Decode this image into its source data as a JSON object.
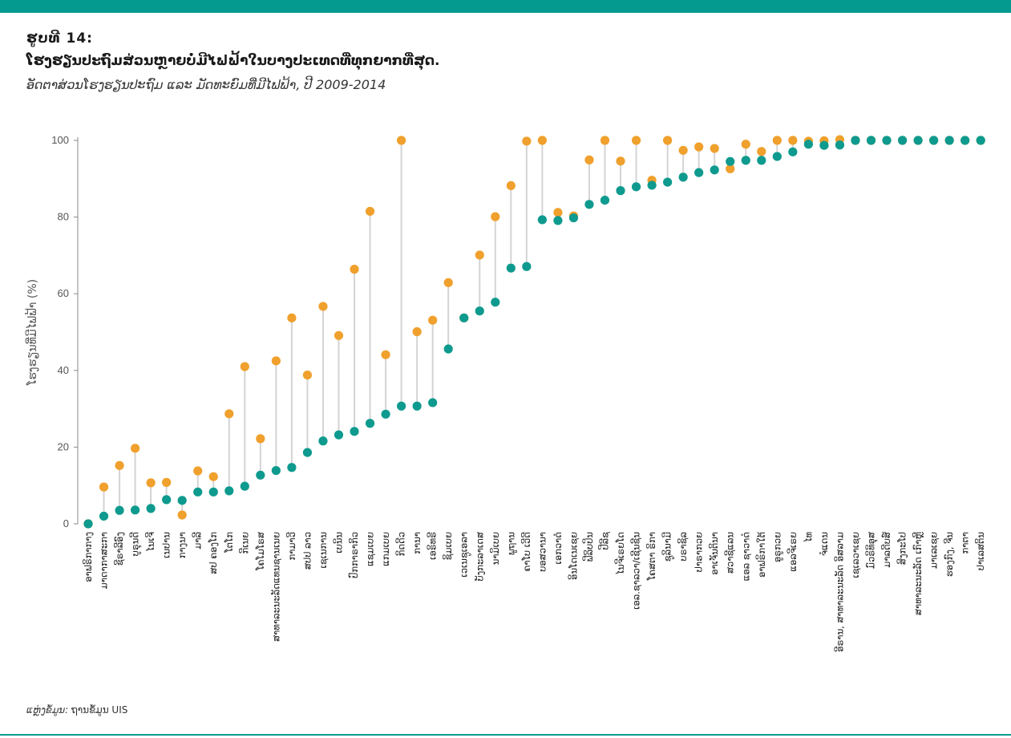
{
  "header": {
    "figure_label": "ຮູບທີ 14:",
    "title": "ໂຮງຮຽນປະຖົມສ່ວນຫຼາຍບໍ່ມີໄຟຟ້າໃນບາງປະເທດທີ່ທຸກຍາກທີ່ສຸດ.",
    "subtitle": "ອັດຕາສ່ວນໂຮງຮຽນປະຖົມ ແລະ ມັດທະຍົມທີ່ມີໄຟຟ້າ, ປີ 2009-2014"
  },
  "footer": {
    "source_label": "ແຫຼ່ງຂໍ້ມູນ:",
    "source_text": "ຖານຂໍ້ມູນ UIS"
  },
  "colors": {
    "accent_bar": "#049a8f",
    "primary": "#0e9a8e",
    "secondary": "#f0a02c",
    "connector": "#d4d4d4",
    "axis": "#888888"
  },
  "chart_data": {
    "type": "dumbbell",
    "ylabel": "ໂຮງຮຽນທີ່ມີໄຟຟ້າ (%)",
    "ylim": [
      0,
      100
    ],
    "yticks": [
      0,
      20,
      40,
      60,
      80,
      100
    ],
    "grid": false,
    "legend": "none",
    "series": [
      {
        "color": "#0e9a8e"
      },
      {
        "color": "#f0a02c"
      }
    ],
    "categories": [
      "ອາຟຣິກາກາງ",
      "ມາດາກາສະກາ",
      "ຊີຣາລີອົງ",
      "ບູຣຸນດີ",
      "ໄນເຈີ",
      "ເນປານ",
      "ກາງນາ",
      "ມາລີ",
      "ສປ ຄອງໂກ",
      "ໂຕໂກ",
      "ກີເນຍ",
      "ໂຄໂມໂຣສ",
      "ສາທາລະນະລັດແທນຊານເນຍ",
      "ກາມາວີ",
      "ສປປ ລາວ",
      "ເຊເນການ",
      "ເບນິນ",
      "ປົກກາຣາກິວ",
      "ແຊມເບຍ",
      "ແກມເບຍ",
      "ກິດດີວ",
      "ການາ",
      "ເອຣິທຣີ",
      "ຊິມເບຍ",
      "ເວເນຊູເອລາ",
      "ບັງກະລາເດສ",
      "ນາມິເບຍ",
      "ພູຖານ",
      "ຄາໂບ ເວີດີ",
      "ບອສວານາ",
      "ເອກວາດໍ",
      "ອິນໂດເນເຊຍ",
      "ຟີລິບປິນ",
      "ປີລີຊ",
      "ໄນຈີເຣຍໂດ",
      "ເອລ.ຊາລວາ/ເຊີນຊີນ",
      "ໂຄສຕາ ຣິກາ",
      "ຊູລິນາມີ",
      "ບຣາຊິລ",
      "ປາຣາກວຍ",
      "ອາເຈັນຕິນາ",
      "ສວາຊີແລນ",
      "ແອລ ຊາວາດໍ",
      "ອາຟຣິກາໃຕ້",
      "ອູຣູກວຍ",
      "ແອລຈີເຣຍ",
      "ໄທ",
      "ຈໍແດນ",
      "ອີຣານ, ສາທາລະນະລັດ ອິສລາມ",
      "ເຊເລວາເຊຍ",
      "ມົວຣິທິອຸສ",
      "ມາລດີບສ໌",
      "ສິງກະໂປ",
      "ສາທາລະນະລັດ ເກົາຫຼີ",
      "ມາເລເຊຍ",
      "ຮອງກົງ, ຈີນ",
      "ກາຕາ",
      "ປາເລສຕິນ"
    ],
    "values_a": [
      0,
      2,
      3.5,
      3.6,
      4,
      6.3,
      6.1,
      8.3,
      8.3,
      8.6,
      9.8,
      12.7,
      13.9,
      14.7,
      18.6,
      21.6,
      23.2,
      24.1,
      26.2,
      28.6,
      30.7,
      30.7,
      31.6,
      45.6,
      53.7,
      55.5,
      57.8,
      66.7,
      67.1,
      79.3,
      79.1,
      79.8,
      83.3,
      84.4,
      86.9,
      87.9,
      88.3,
      89.1,
      90.4,
      91.6,
      92.3,
      94.5,
      94.8,
      94.8,
      95.8,
      97,
      99,
      98.7,
      98.8,
      100,
      100,
      100,
      100,
      100,
      100,
      100,
      100,
      100
    ],
    "values_b": [
      0,
      9.6,
      15.2,
      19.7,
      10.7,
      10.8,
      2.3,
      13.8,
      12.3,
      28.7,
      41,
      22.2,
      42.5,
      53.7,
      38.8,
      56.7,
      49.1,
      66.4,
      81.5,
      44.1,
      100,
      50.1,
      53.1,
      62.9,
      53.7,
      70.1,
      80.1,
      88.2,
      99.8,
      100,
      81.2,
      80.3,
      94.9,
      100,
      94.6,
      100,
      89.6,
      100,
      97.4,
      98.3,
      97.9,
      92.6,
      99,
      97.1,
      100,
      100,
      99.8,
      99.9,
      100.2,
      100,
      100,
      100,
      100,
      100,
      100,
      100,
      100,
      100
    ]
  }
}
